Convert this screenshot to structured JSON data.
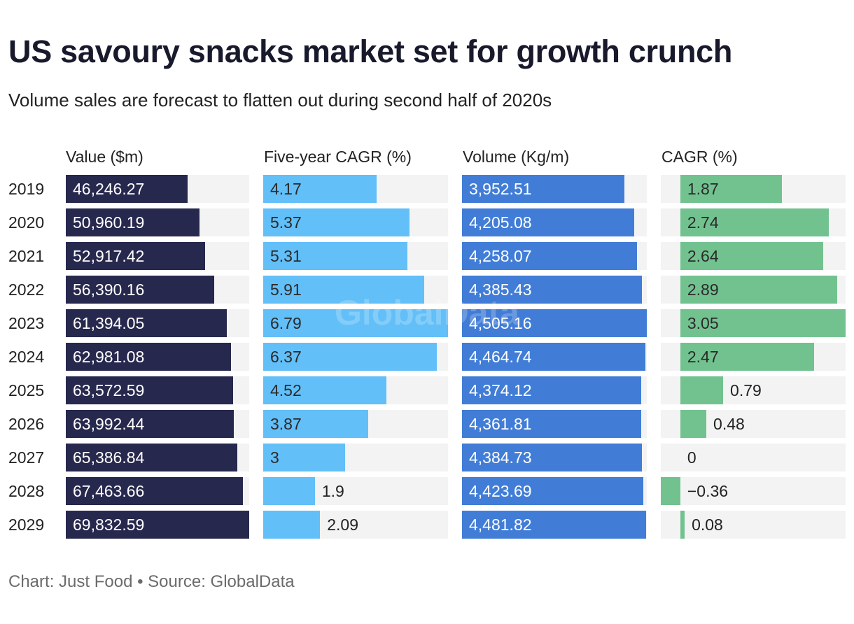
{
  "title": "US savoury snacks market set for growth crunch",
  "subtitle": "Volume sales are forecast to flatten out during second half of 2020s",
  "footer": "Chart: Just Food • Source: GlobalData",
  "watermark": "GlobalData",
  "chart_data": {
    "type": "table",
    "title": "US savoury snacks market set for growth crunch",
    "subtitle": "Volume sales are forecast to flatten out during second half of 2020s",
    "categories": [
      "2019",
      "2020",
      "2021",
      "2022",
      "2023",
      "2024",
      "2025",
      "2026",
      "2027",
      "2028",
      "2029"
    ],
    "series": [
      {
        "key": "value",
        "name": "Value ($m)",
        "color": "#27284d",
        "label_color": "#ffffff",
        "values": [
          46246.27,
          50960.19,
          52917.42,
          56390.16,
          61394.05,
          62981.08,
          63572.59,
          63992.44,
          65386.84,
          67463.66,
          69832.59
        ],
        "labels": [
          "46,246.27",
          "50,960.19",
          "52,917.42",
          "56,390.16",
          "61,394.05",
          "62,981.08",
          "63,572.59",
          "63,992.44",
          "65,386.84",
          "67,463.66",
          "69,832.59"
        ]
      },
      {
        "key": "cagr5",
        "name": "Five-year CAGR (%)",
        "color": "#62bff8",
        "label_color": "#2a2a2a",
        "values": [
          4.17,
          5.37,
          5.31,
          5.91,
          6.79,
          6.37,
          4.52,
          3.87,
          3,
          1.9,
          2.09
        ],
        "labels": [
          "4.17",
          "5.37",
          "5.31",
          "5.91",
          "6.79",
          "6.37",
          "4.52",
          "3.87",
          "3",
          "1.9",
          "2.09"
        ]
      },
      {
        "key": "volume",
        "name": "Volume (Kg/m)",
        "color": "#417dd6",
        "label_color": "#ffffff",
        "values": [
          3952.51,
          4205.08,
          4258.07,
          4385.43,
          4505.16,
          4464.74,
          4374.12,
          4361.81,
          4384.73,
          4423.69,
          4481.82
        ],
        "labels": [
          "3,952.51",
          "4,205.08",
          "4,258.07",
          "4,385.43",
          "4,505.16",
          "4,464.74",
          "4,374.12",
          "4,361.81",
          "4,384.73",
          "4,423.69",
          "4,481.82"
        ]
      },
      {
        "key": "cagr",
        "name": "CAGR (%)",
        "color": "#72c290",
        "label_color": "#2a2a2a",
        "values": [
          1.87,
          2.74,
          2.64,
          2.89,
          3.05,
          2.47,
          0.79,
          0.48,
          0,
          -0.36,
          0.08
        ],
        "labels": [
          "1.87",
          "2.74",
          "2.64",
          "2.89",
          "3.05",
          "2.47",
          "0.79",
          "0.48",
          "0",
          "−0.36",
          "0.08"
        ]
      }
    ]
  }
}
